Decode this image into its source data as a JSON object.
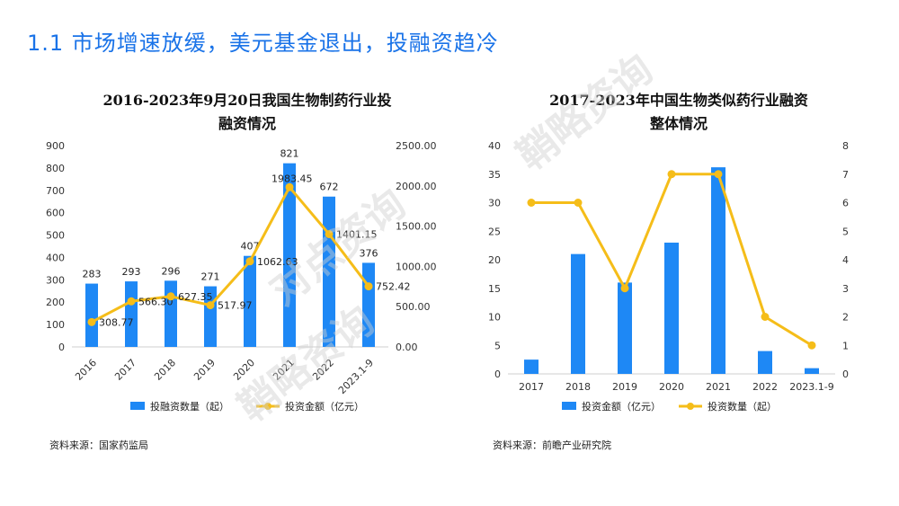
{
  "page_title": "1.1 市场增速放缓，美元基金退出，投融资趋冷",
  "left": {
    "title_line1": "2016-2023年9月20日我国生物制药行业投",
    "title_line2": "融资情况",
    "source": "资料来源：国家药监局"
  },
  "right": {
    "title_line1": "2017-2023年中国生物类似药行业融资",
    "title_line2": "整体情况",
    "source": "资料来源：前瞻产业研究院"
  },
  "watermark": {
    "text1": "对点资询",
    "text2": "鞘略资询"
  },
  "chart_data": [
    {
      "type": "bar",
      "categories": [
        "2016",
        "2017",
        "2018",
        "2019",
        "2020",
        "2021",
        "2022",
        "2023.1-9"
      ],
      "series": [
        {
          "name": "投融资数量（起）",
          "type": "bar",
          "axis": "left",
          "color": "#1e88f5",
          "values": [
            283,
            293,
            296,
            271,
            407,
            821,
            672,
            376
          ],
          "labels": [
            "283",
            "293",
            "296",
            "271",
            "407",
            "821",
            "672",
            "376"
          ]
        },
        {
          "name": "投资金额（亿元）",
          "type": "line",
          "axis": "right",
          "color": "#f5bd19",
          "values": [
            308.77,
            566.3,
            627.35,
            517.97,
            1062.63,
            1983.45,
            1401.15,
            752.42
          ],
          "labels": [
            "308.77",
            "566.30",
            "627.35",
            "517.97",
            "1062.63",
            "1983.45",
            "1401.15",
            "752.42"
          ]
        }
      ],
      "y_left": {
        "min": 0,
        "max": 900,
        "ticks": [
          "0",
          "100",
          "200",
          "300",
          "400",
          "500",
          "600",
          "700",
          "800",
          "900"
        ]
      },
      "y_right": {
        "min": 0,
        "max": 2500,
        "ticks": [
          "0.00",
          "500.00",
          "1000.00",
          "1500.00",
          "2000.00",
          "2500.00"
        ]
      },
      "x_labels_rotated": true,
      "legend": "bottom"
    },
    {
      "type": "bar",
      "categories": [
        "2017",
        "2018",
        "2019",
        "2020",
        "2021",
        "2022",
        "2023.1-9"
      ],
      "series": [
        {
          "name": "投资金额（亿元）",
          "type": "bar",
          "axis": "left",
          "color": "#1e88f5",
          "values": [
            2.5,
            21,
            16,
            23,
            36.2,
            4,
            1
          ]
        },
        {
          "name": "投资数量（起）",
          "type": "line",
          "axis": "right",
          "color": "#f5bd19",
          "values": [
            6,
            6,
            3,
            7,
            7,
            2,
            1
          ]
        }
      ],
      "y_left": {
        "min": 0,
        "max": 40,
        "ticks": [
          "0",
          "5",
          "10",
          "15",
          "20",
          "25",
          "30",
          "35",
          "40"
        ]
      },
      "y_right": {
        "min": 0,
        "max": 8,
        "ticks": [
          "0",
          "1",
          "2",
          "3",
          "4",
          "5",
          "6",
          "7",
          "8"
        ]
      },
      "x_labels_rotated": false,
      "legend": "bottom"
    }
  ]
}
